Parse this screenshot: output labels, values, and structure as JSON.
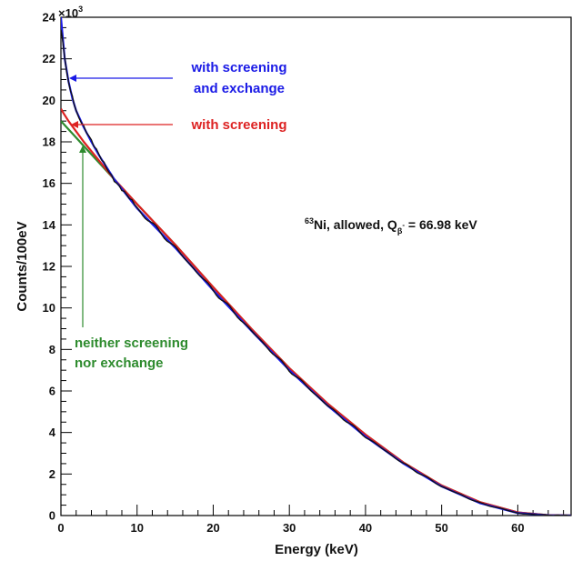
{
  "chart_data": {
    "type": "line",
    "xlabel": "Energy (keV)",
    "ylabel": "Counts/100eV",
    "y_multiplier_label": "×10",
    "y_multiplier_exp": "3",
    "xlim": [
      0,
      67
    ],
    "ylim": [
      0,
      24
    ],
    "x_ticks": [
      0,
      10,
      20,
      30,
      40,
      50,
      60
    ],
    "y_ticks": [
      0,
      2,
      4,
      6,
      8,
      10,
      12,
      14,
      16,
      18,
      20,
      22,
      24
    ],
    "grid": false,
    "legend": "none",
    "colors": {
      "data": "#111111",
      "screening_exchange": "#1a1ae6",
      "screening": "#dd2222",
      "neither": "#2e8b2e"
    },
    "series": [
      {
        "key": "neither",
        "x": [
          0,
          1,
          2,
          3,
          5,
          7,
          10,
          15,
          20,
          25,
          30,
          35,
          40,
          45,
          50,
          55,
          60,
          64,
          66.98
        ],
        "values": [
          19.0,
          18.6,
          18.2,
          17.8,
          17.0,
          16.2,
          15.0,
          13.05,
          11.0,
          9.0,
          7.1,
          5.4,
          3.9,
          2.55,
          1.45,
          0.65,
          0.15,
          0.02,
          0
        ]
      },
      {
        "key": "screening",
        "x": [
          0,
          0.3,
          1,
          2,
          3,
          5,
          7,
          10,
          15,
          20,
          25,
          30,
          35,
          40,
          45,
          50,
          55,
          60,
          64,
          66.98
        ],
        "values": [
          19.6,
          19.4,
          19.0,
          18.5,
          18.0,
          17.1,
          16.2,
          15.0,
          13.05,
          11.0,
          9.0,
          7.1,
          5.4,
          3.9,
          2.55,
          1.45,
          0.65,
          0.15,
          0.02,
          0
        ]
      },
      {
        "key": "screening_exchange",
        "x": [
          0,
          0.2,
          0.5,
          1,
          1.5,
          2,
          3,
          4,
          5,
          7,
          10,
          15,
          20,
          25,
          30,
          35,
          40,
          45,
          50,
          55,
          60,
          64,
          66.98
        ],
        "values": [
          24.0,
          23.2,
          22.0,
          20.9,
          20.1,
          19.5,
          18.7,
          18.0,
          17.35,
          16.2,
          14.8,
          12.9,
          10.85,
          8.9,
          7.0,
          5.3,
          3.8,
          2.5,
          1.4,
          0.6,
          0.12,
          0.01,
          0
        ]
      },
      {
        "key": "data",
        "x": [
          0,
          0.2,
          0.5,
          1,
          1.5,
          2,
          3,
          4,
          5,
          7,
          10,
          15,
          20,
          25,
          30,
          35,
          40,
          45,
          50,
          55,
          60,
          64,
          66.98
        ],
        "values": [
          23.4,
          23.0,
          22.0,
          20.9,
          20.1,
          19.5,
          18.7,
          18.0,
          17.35,
          16.2,
          14.8,
          12.9,
          10.85,
          8.9,
          7.0,
          5.3,
          3.8,
          2.5,
          1.4,
          0.6,
          0.12,
          0.01,
          0
        ]
      }
    ],
    "annotations": {
      "screening_exchange_line1": "with screening",
      "screening_exchange_line2": "and exchange",
      "screening": "with screening",
      "neither_line1": "neither screening",
      "neither_line2": "nor exchange",
      "physics_mass": "63",
      "physics_main": "Ni, allowed, Q",
      "physics_sub": "β",
      "physics_sup": "-",
      "physics_value": " = 66.98 keV"
    }
  }
}
